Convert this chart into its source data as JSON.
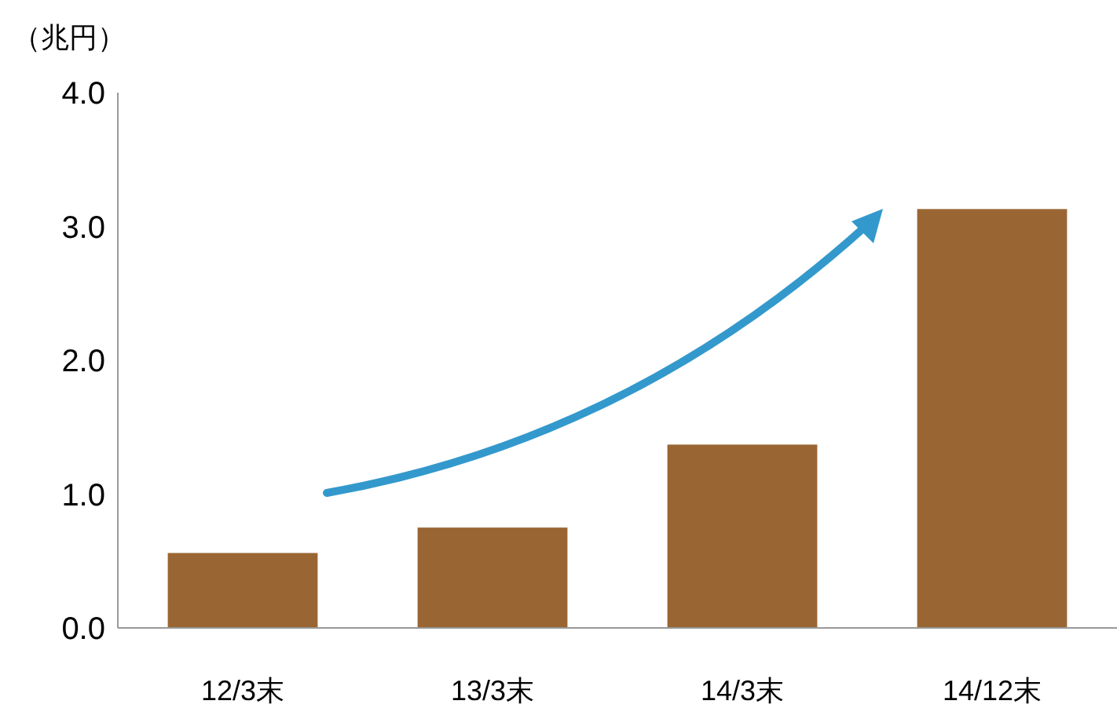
{
  "chart_data": {
    "type": "bar",
    "ylabel": "（兆円）",
    "categories": [
      "12/3末",
      "13/3末",
      "14/3末",
      "14/12末"
    ],
    "values": [
      0.56,
      0.75,
      1.37,
      3.13
    ],
    "color": "#996633",
    "ylim": [
      0,
      4
    ],
    "yticks": [
      {
        "value": 0,
        "label": "0.0"
      },
      {
        "value": 1,
        "label": "1.0"
      },
      {
        "value": 2,
        "label": "2.0"
      },
      {
        "value": 3,
        "label": "3.0"
      },
      {
        "value": 4,
        "label": "4.0"
      }
    ]
  }
}
